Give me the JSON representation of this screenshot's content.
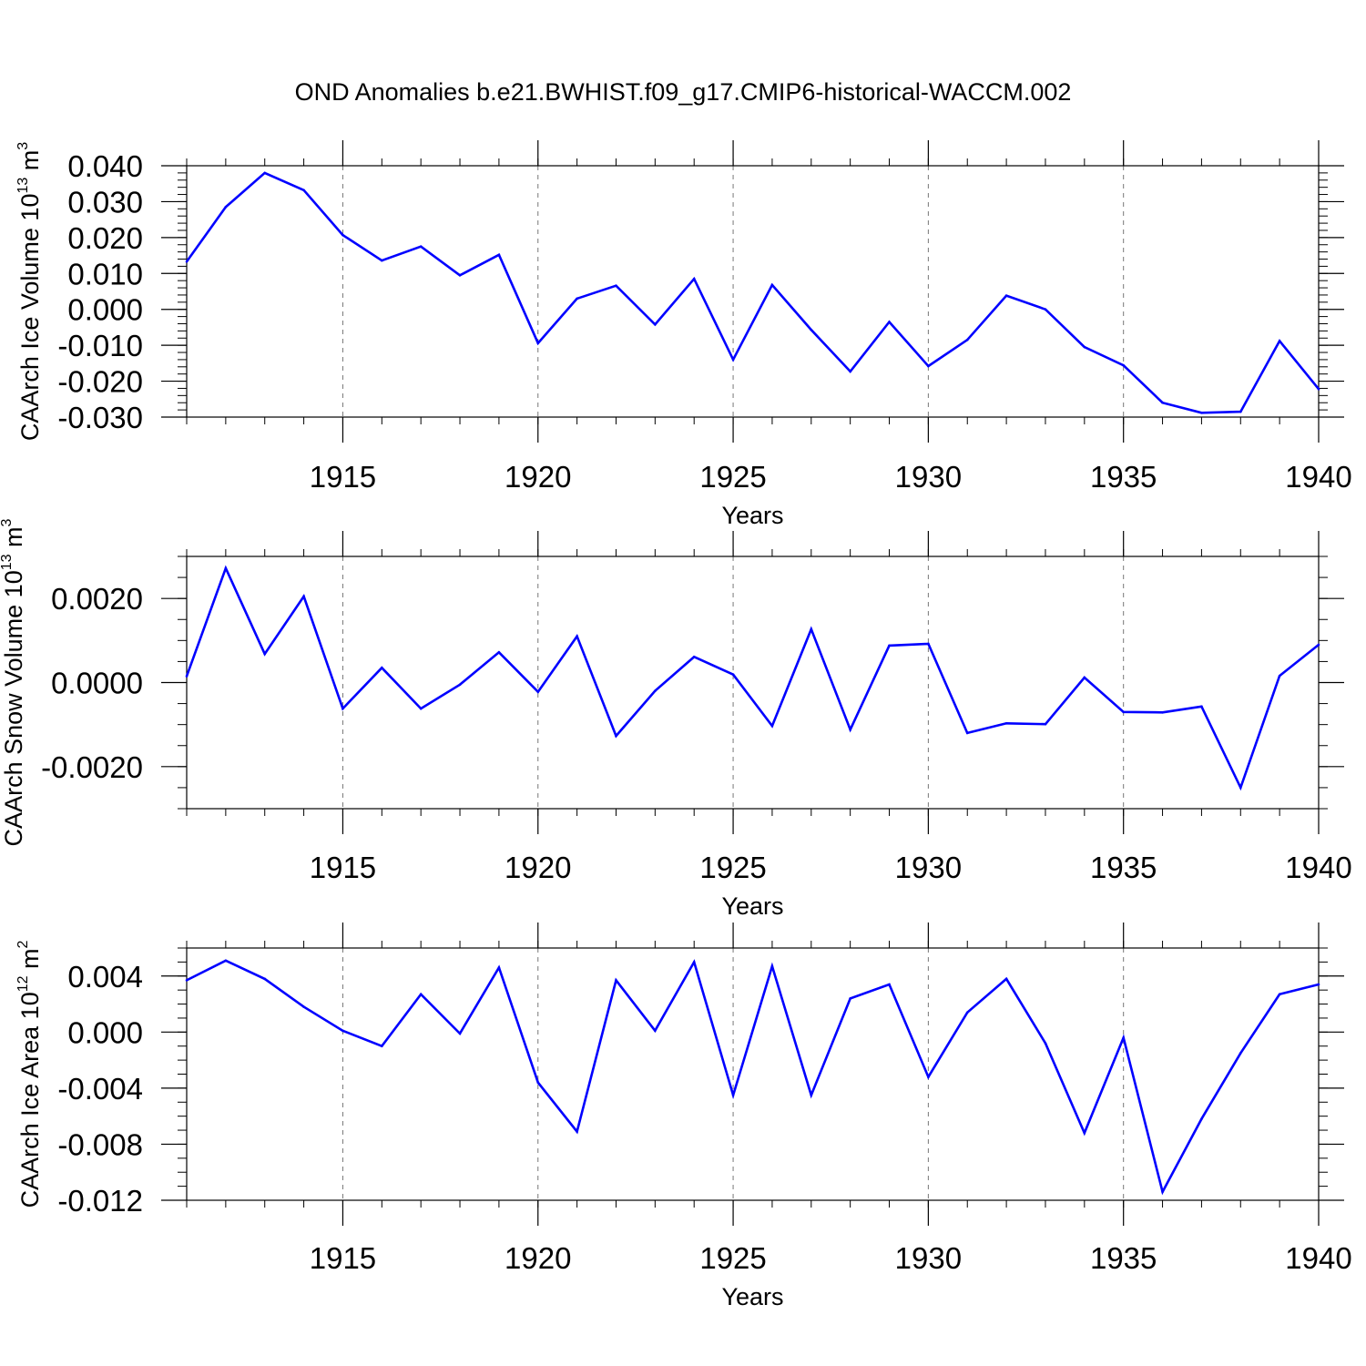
{
  "title": "OND Anomalies b.e21.BWHIST.f09_g17.CMIP6-historical-WACCM.002",
  "line_color": "#0000ff",
  "chart_data": [
    {
      "type": "line",
      "ylabel": "CAArch Ice Volume 10",
      "ylabel_exp": "13",
      "ylabel_unit": " m",
      "ylabel_unit_exp": "3",
      "xlabel": "Years",
      "xlim": [
        1911,
        1940
      ],
      "ylim": [
        -0.03,
        0.04
      ],
      "yticks": [
        -0.03,
        -0.02,
        -0.01,
        0.0,
        0.01,
        0.02,
        0.03,
        0.04
      ],
      "yticklabels": [
        "-0.030",
        "-0.020",
        "-0.010",
        "0.000",
        "0.010",
        "0.020",
        "0.030",
        "0.040"
      ],
      "yminor": 0.002,
      "xticks": [
        1915,
        1920,
        1925,
        1930,
        1935,
        1940
      ],
      "xticklabels": [
        "1915",
        "1920",
        "1925",
        "1930",
        "1935",
        "1940"
      ],
      "grid_x": true,
      "x": [
        1911,
        1912,
        1913,
        1914,
        1915,
        1916,
        1917,
        1918,
        1919,
        1920,
        1921,
        1922,
        1923,
        1924,
        1925,
        1926,
        1927,
        1928,
        1929,
        1930,
        1931,
        1932,
        1933,
        1934,
        1935,
        1936,
        1937,
        1938,
        1939,
        1940
      ],
      "values": [
        0.0133,
        0.0285,
        0.038,
        0.0332,
        0.0207,
        0.0136,
        0.0175,
        0.0095,
        0.0152,
        -0.0094,
        0.003,
        0.0066,
        -0.0042,
        0.0085,
        -0.014,
        0.0068,
        -0.0057,
        -0.0173,
        -0.0035,
        -0.0158,
        -0.0085,
        0.0038,
        0.0,
        -0.0105,
        -0.0156,
        -0.026,
        -0.0288,
        -0.0285,
        -0.0088,
        -0.0222
      ]
    },
    {
      "type": "line",
      "ylabel": "CAArch Snow Volume 10",
      "ylabel_exp": "13",
      "ylabel_unit": " m",
      "ylabel_unit_exp": "3",
      "xlabel": "Years",
      "xlim": [
        1911,
        1940
      ],
      "ylim": [
        -0.003,
        0.003
      ],
      "yticks": [
        -0.002,
        0.0,
        0.002
      ],
      "yticklabels": [
        "-0.0020",
        "0.0000",
        "0.0020"
      ],
      "yminor": 0.0005,
      "xticks": [
        1915,
        1920,
        1925,
        1930,
        1935,
        1940
      ],
      "xticklabels": [
        "1915",
        "1920",
        "1925",
        "1930",
        "1935",
        "1940"
      ],
      "grid_x": true,
      "x": [
        1911,
        1912,
        1913,
        1914,
        1915,
        1916,
        1917,
        1918,
        1919,
        1920,
        1921,
        1922,
        1923,
        1924,
        1925,
        1926,
        1927,
        1928,
        1929,
        1930,
        1931,
        1932,
        1933,
        1934,
        1935,
        1936,
        1937,
        1938,
        1939,
        1940
      ],
      "values": [
        0.00015,
        0.00272,
        0.00068,
        0.00205,
        -0.00062,
        0.00035,
        -0.00062,
        -5e-05,
        0.00072,
        -0.00022,
        0.0011,
        -0.00127,
        -0.0002,
        0.00061,
        0.00019,
        -0.00103,
        0.00127,
        -0.00112,
        0.00088,
        0.00092,
        -0.0012,
        -0.00097,
        -0.00099,
        0.00012,
        -0.0007,
        -0.00071,
        -0.00057,
        -0.0025,
        0.00016,
        0.0009
      ]
    },
    {
      "type": "line",
      "ylabel": "CAArch Ice Area 10",
      "ylabel_exp": "12",
      "ylabel_unit": " m",
      "ylabel_unit_exp": "2",
      "xlabel": "Years",
      "xlim": [
        1911,
        1940
      ],
      "ylim": [
        -0.012,
        0.006
      ],
      "yticks": [
        -0.012,
        -0.008,
        -0.004,
        0.0,
        0.004
      ],
      "yticklabels": [
        "-0.012",
        "-0.008",
        "-0.004",
        "0.000",
        "0.004"
      ],
      "yminor": 0.001,
      "xticks": [
        1915,
        1920,
        1925,
        1930,
        1935,
        1940
      ],
      "xticklabels": [
        "1915",
        "1920",
        "1925",
        "1930",
        "1935",
        "1940"
      ],
      "grid_x": true,
      "x": [
        1911,
        1912,
        1913,
        1914,
        1915,
        1916,
        1917,
        1918,
        1919,
        1920,
        1921,
        1922,
        1923,
        1924,
        1925,
        1926,
        1927,
        1928,
        1929,
        1930,
        1931,
        1932,
        1933,
        1934,
        1935,
        1936,
        1937,
        1938,
        1939,
        1940
      ],
      "values": [
        0.0037,
        0.0051,
        0.0038,
        0.0018,
        0.0001,
        -0.001,
        0.0027,
        -0.0001,
        0.0046,
        -0.0036,
        -0.0071,
        0.0037,
        0.0001,
        0.005,
        -0.0045,
        0.0047,
        -0.0045,
        0.0024,
        0.0034,
        -0.0032,
        0.0014,
        0.0038,
        -0.0008,
        -0.0072,
        -0.0004,
        -0.0114,
        -0.0062,
        -0.0015,
        0.0027,
        0.0034
      ]
    }
  ]
}
